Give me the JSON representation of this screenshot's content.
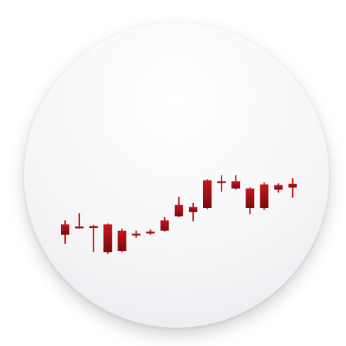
{
  "icon": {
    "name": "candlestick-chart-app-icon",
    "accent_color": "#c4161c",
    "accent_dark": "#7a0a0e"
  },
  "chart_data": {
    "type": "candlestick",
    "candles": [
      {
        "open": 0.27,
        "close": 0.32,
        "high": 0.34,
        "low": 0.225
      },
      {
        "open": 0.305,
        "close": 0.31,
        "high": 0.375,
        "low": 0.3
      },
      {
        "open": 0.31,
        "close": 0.312,
        "high": 0.318,
        "low": 0.185
      },
      {
        "open": 0.32,
        "close": 0.185,
        "high": 0.325,
        "low": 0.175
      },
      {
        "open": 0.29,
        "close": 0.19,
        "high": 0.3,
        "low": 0.185
      },
      {
        "open": 0.275,
        "close": 0.27,
        "high": 0.29,
        "low": 0.255
      },
      {
        "open": 0.285,
        "close": 0.283,
        "high": 0.295,
        "low": 0.27
      },
      {
        "open": 0.29,
        "close": 0.34,
        "high": 0.355,
        "low": 0.285
      },
      {
        "open": 0.36,
        "close": 0.415,
        "high": 0.455,
        "low": 0.355
      },
      {
        "open": 0.38,
        "close": 0.405,
        "high": 0.425,
        "low": 0.335
      },
      {
        "open": 0.4,
        "close": 0.535,
        "high": 0.54,
        "low": 0.395
      },
      {
        "open": 0.53,
        "close": 0.528,
        "high": 0.56,
        "low": 0.48
      },
      {
        "open": 0.53,
        "close": 0.495,
        "high": 0.56,
        "low": 0.49
      },
      {
        "open": 0.495,
        "close": 0.4,
        "high": 0.5,
        "low": 0.37
      },
      {
        "open": 0.515,
        "close": 0.4,
        "high": 0.525,
        "low": 0.39
      },
      {
        "open": 0.512,
        "close": 0.49,
        "high": 0.52,
        "low": 0.475
      },
      {
        "open": 0.518,
        "close": 0.5,
        "high": 0.545,
        "low": 0.45
      }
    ],
    "title": "",
    "xlabel": "",
    "ylabel": "",
    "grid": false
  }
}
